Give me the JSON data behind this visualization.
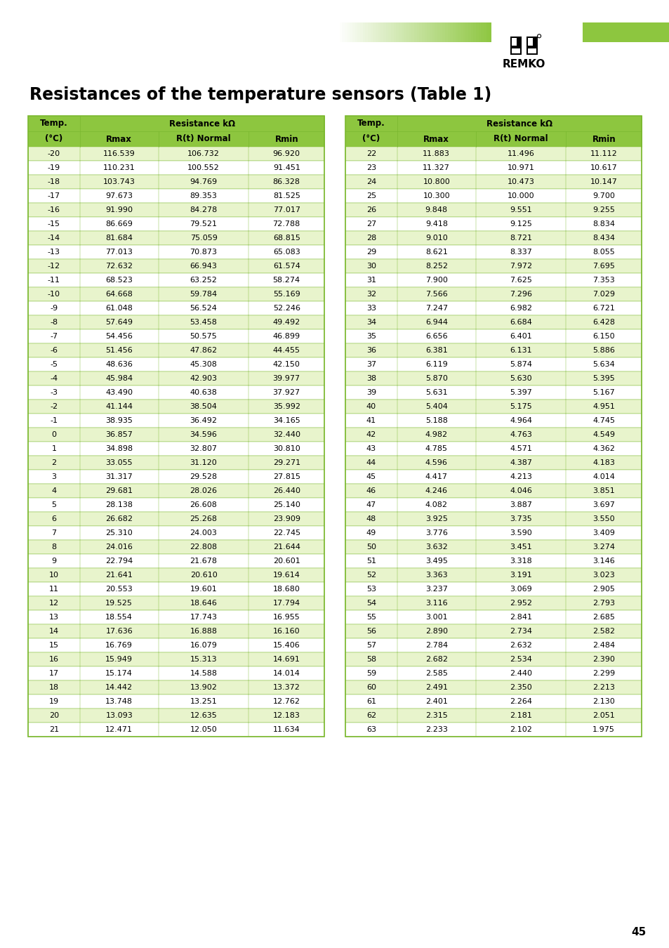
{
  "title": "Resistances of the temperature sensors (Table 1)",
  "subheader": [
    "(°C)",
    "Rmax",
    "R(t) Normal",
    "Rmin"
  ],
  "table1": [
    [
      -20,
      116.539,
      106.732,
      96.92
    ],
    [
      -19,
      110.231,
      100.552,
      91.451
    ],
    [
      -18,
      103.743,
      94.769,
      86.328
    ],
    [
      -17,
      97.673,
      89.353,
      81.525
    ],
    [
      -16,
      91.99,
      84.278,
      77.017
    ],
    [
      -15,
      86.669,
      79.521,
      72.788
    ],
    [
      -14,
      81.684,
      75.059,
      68.815
    ],
    [
      -13,
      77.013,
      70.873,
      65.083
    ],
    [
      -12,
      72.632,
      66.943,
      61.574
    ],
    [
      -11,
      68.523,
      63.252,
      58.274
    ],
    [
      -10,
      64.668,
      59.784,
      55.169
    ],
    [
      -9,
      61.048,
      56.524,
      52.246
    ],
    [
      -8,
      57.649,
      53.458,
      49.492
    ],
    [
      -7,
      54.456,
      50.575,
      46.899
    ],
    [
      -6,
      51.456,
      47.862,
      44.455
    ],
    [
      -5,
      48.636,
      45.308,
      42.15
    ],
    [
      -4,
      45.984,
      42.903,
      39.977
    ],
    [
      -3,
      43.49,
      40.638,
      37.927
    ],
    [
      -2,
      41.144,
      38.504,
      35.992
    ],
    [
      -1,
      38.935,
      36.492,
      34.165
    ],
    [
      0,
      36.857,
      34.596,
      32.44
    ],
    [
      1,
      34.898,
      32.807,
      30.81
    ],
    [
      2,
      33.055,
      31.12,
      29.271
    ],
    [
      3,
      31.317,
      29.528,
      27.815
    ],
    [
      4,
      29.681,
      28.026,
      26.44
    ],
    [
      5,
      28.138,
      26.608,
      25.14
    ],
    [
      6,
      26.682,
      25.268,
      23.909
    ],
    [
      7,
      25.31,
      24.003,
      22.745
    ],
    [
      8,
      24.016,
      22.808,
      21.644
    ],
    [
      9,
      22.794,
      21.678,
      20.601
    ],
    [
      10,
      21.641,
      20.61,
      19.614
    ],
    [
      11,
      20.553,
      19.601,
      18.68
    ],
    [
      12,
      19.525,
      18.646,
      17.794
    ],
    [
      13,
      18.554,
      17.743,
      16.955
    ],
    [
      14,
      17.636,
      16.888,
      16.16
    ],
    [
      15,
      16.769,
      16.079,
      15.406
    ],
    [
      16,
      15.949,
      15.313,
      14.691
    ],
    [
      17,
      15.174,
      14.588,
      14.014
    ],
    [
      18,
      14.442,
      13.902,
      13.372
    ],
    [
      19,
      13.748,
      13.251,
      12.762
    ],
    [
      20,
      13.093,
      12.635,
      12.183
    ],
    [
      21,
      12.471,
      12.05,
      11.634
    ]
  ],
  "table2": [
    [
      22,
      11.883,
      11.496,
      11.112
    ],
    [
      23,
      11.327,
      10.971,
      10.617
    ],
    [
      24,
      10.8,
      10.473,
      10.147
    ],
    [
      25,
      10.3,
      10.0,
      9.7
    ],
    [
      26,
      9.848,
      9.551,
      9.255
    ],
    [
      27,
      9.418,
      9.125,
      8.834
    ],
    [
      28,
      9.01,
      8.721,
      8.434
    ],
    [
      29,
      8.621,
      8.337,
      8.055
    ],
    [
      30,
      8.252,
      7.972,
      7.695
    ],
    [
      31,
      7.9,
      7.625,
      7.353
    ],
    [
      32,
      7.566,
      7.296,
      7.029
    ],
    [
      33,
      7.247,
      6.982,
      6.721
    ],
    [
      34,
      6.944,
      6.684,
      6.428
    ],
    [
      35,
      6.656,
      6.401,
      6.15
    ],
    [
      36,
      6.381,
      6.131,
      5.886
    ],
    [
      37,
      6.119,
      5.874,
      5.634
    ],
    [
      38,
      5.87,
      5.63,
      5.395
    ],
    [
      39,
      5.631,
      5.397,
      5.167
    ],
    [
      40,
      5.404,
      5.175,
      4.951
    ],
    [
      41,
      5.188,
      4.964,
      4.745
    ],
    [
      42,
      4.982,
      4.763,
      4.549
    ],
    [
      43,
      4.785,
      4.571,
      4.362
    ],
    [
      44,
      4.596,
      4.387,
      4.183
    ],
    [
      45,
      4.417,
      4.213,
      4.014
    ],
    [
      46,
      4.246,
      4.046,
      3.851
    ],
    [
      47,
      4.082,
      3.887,
      3.697
    ],
    [
      48,
      3.925,
      3.735,
      3.55
    ],
    [
      49,
      3.776,
      3.59,
      3.409
    ],
    [
      50,
      3.632,
      3.451,
      3.274
    ],
    [
      51,
      3.495,
      3.318,
      3.146
    ],
    [
      52,
      3.363,
      3.191,
      3.023
    ],
    [
      53,
      3.237,
      3.069,
      2.905
    ],
    [
      54,
      3.116,
      2.952,
      2.793
    ],
    [
      55,
      3.001,
      2.841,
      2.685
    ],
    [
      56,
      2.89,
      2.734,
      2.582
    ],
    [
      57,
      2.784,
      2.632,
      2.484
    ],
    [
      58,
      2.682,
      2.534,
      2.39
    ],
    [
      59,
      2.585,
      2.44,
      2.299
    ],
    [
      60,
      2.491,
      2.35,
      2.213
    ],
    [
      61,
      2.401,
      2.264,
      2.13
    ],
    [
      62,
      2.315,
      2.181,
      2.051
    ],
    [
      63,
      2.233,
      2.102,
      1.975
    ]
  ],
  "header_bg": "#8dc63f",
  "row_bg_light": "#e8f4cc",
  "row_bg_white": "#ffffff",
  "border_color": "#7ab82e",
  "page_number": "45",
  "bg_color": "#ffffff",
  "logo_green": "#5ba622",
  "logo_green2": "#8dc63f"
}
